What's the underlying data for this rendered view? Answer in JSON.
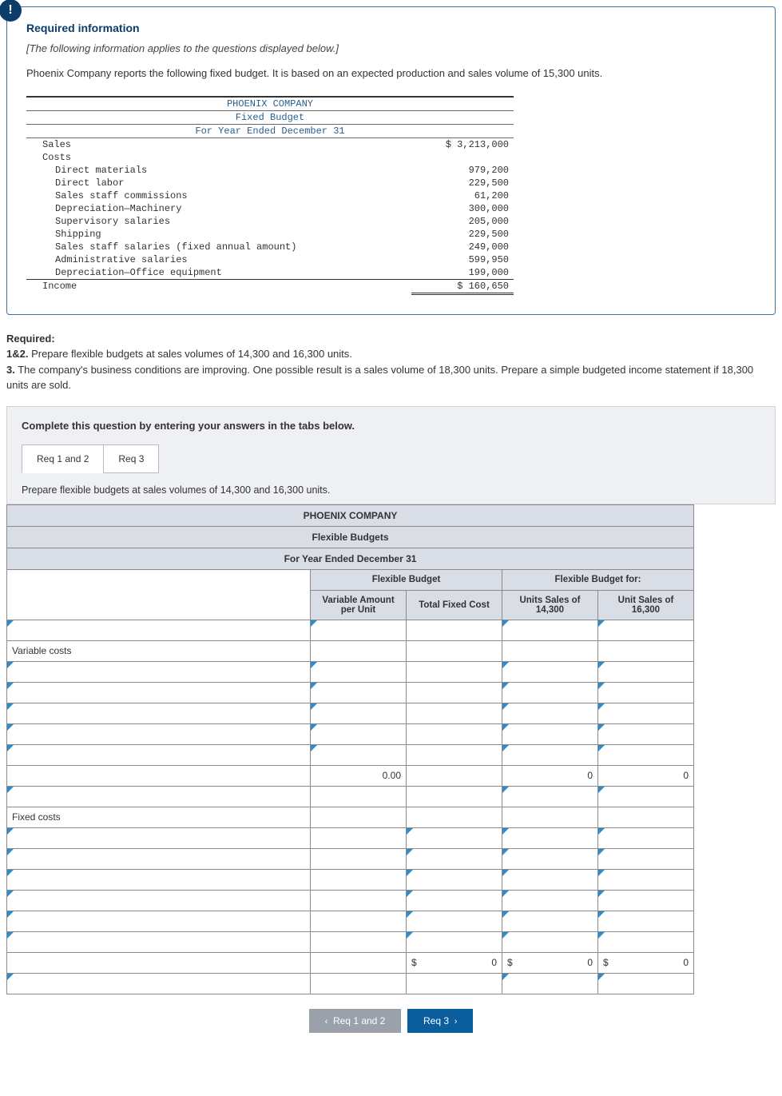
{
  "info_card": {
    "title": "Required information",
    "subtitle": "[The following information applies to the questions displayed below.]",
    "description": "Phoenix Company reports the following fixed budget. It is based on an expected production and sales volume of 15,300 units."
  },
  "fixed_budget": {
    "header1": "PHOENIX COMPANY",
    "header2": "Fixed Budget",
    "header3": "For Year Ended December 31",
    "rows": [
      {
        "label": "Sales",
        "value": "$ 3,213,000",
        "indent": 1
      },
      {
        "label": "Costs",
        "value": "",
        "indent": 1
      },
      {
        "label": "Direct materials",
        "value": "979,200",
        "indent": 2
      },
      {
        "label": "Direct labor",
        "value": "229,500",
        "indent": 2
      },
      {
        "label": "Sales staff commissions",
        "value": "61,200",
        "indent": 2
      },
      {
        "label": "Depreciation—Machinery",
        "value": "300,000",
        "indent": 2
      },
      {
        "label": "Supervisory salaries",
        "value": "205,000",
        "indent": 2
      },
      {
        "label": "Shipping",
        "value": "229,500",
        "indent": 2
      },
      {
        "label": "Sales staff salaries (fixed annual amount)",
        "value": "249,000",
        "indent": 2
      },
      {
        "label": "Administrative salaries",
        "value": "599,950",
        "indent": 2
      },
      {
        "label": "Depreciation—Office equipment",
        "value": "199,000",
        "indent": 2
      }
    ],
    "income_label": "Income",
    "income_value": "$ 160,650"
  },
  "required": {
    "heading": "Required:",
    "line1_bold": "1&2.",
    "line1": " Prepare flexible budgets at sales volumes of 14,300 and 16,300 units.",
    "line2_bold": "3.",
    "line2": " The company's business conditions are improving. One possible result is a sales volume of 18,300 units. Prepare a simple budgeted income statement if 18,300 units are sold."
  },
  "answer_panel": {
    "instruction": "Complete this question by entering your answers in the tabs below.",
    "tab1": "Req 1 and 2",
    "tab2": "Req 3",
    "content_label": "Prepare flexible budgets at sales volumes of 14,300 and 16,300 units."
  },
  "flex_table": {
    "title": "PHOENIX COMPANY",
    "subtitle": "Flexible Budgets",
    "period": "For Year Ended December 31",
    "group1": "Flexible Budget",
    "group2": "Flexible Budget for:",
    "col1": "Variable Amount per Unit",
    "col2": "Total Fixed Cost",
    "col3": "Units Sales of 14,300",
    "col4": "Unit Sales of 16,300",
    "variable_label": "Variable costs",
    "fixed_label": "Fixed costs",
    "zero_dec": "0.00",
    "zero": "0",
    "dollar": "$"
  },
  "nav": {
    "prev": "Req 1 and 2",
    "next": "Req 3"
  },
  "colors": {
    "brand_blue": "#0b3d6b",
    "border_blue": "#3973ac",
    "header_bg": "#d9dde6",
    "tick_blue": "#2e8bcc",
    "nav_prev": "#9aa1aa",
    "nav_next": "#0b5e9e"
  }
}
